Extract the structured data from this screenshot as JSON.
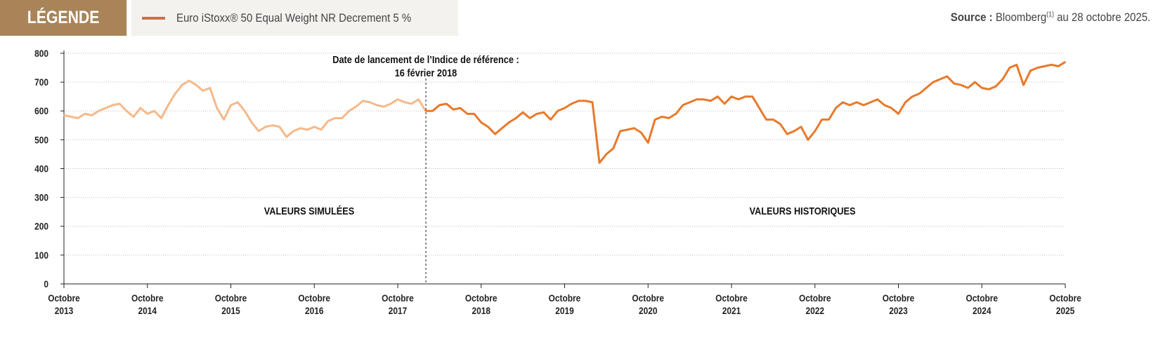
{
  "header": {
    "legend_tag": "LÉGENDE",
    "legend_label": "Euro iStoxx® 50 Equal Weight NR Decrement 5 %",
    "source_bold": "Source :",
    "source_text": "Bloomberg",
    "source_sup": "(1)",
    "source_rest": " au 28 octobre 2025."
  },
  "chart_data": {
    "type": "line",
    "ylim": [
      0,
      800
    ],
    "yticks": [
      "0",
      "100",
      "200",
      "300",
      "400",
      "500",
      "600",
      "700",
      "800"
    ],
    "xticks": [
      [
        "Octobre",
        "2013"
      ],
      [
        "Octobre",
        "2014"
      ],
      [
        "Octobre",
        "2015"
      ],
      [
        "Octobre",
        "2016"
      ],
      [
        "Octobre",
        "2017"
      ],
      [
        "Octobre",
        "2018"
      ],
      [
        "Octobre",
        "2019"
      ],
      [
        "Octobre",
        "2020"
      ],
      [
        "Octobre",
        "2021"
      ],
      [
        "Octobre",
        "2022"
      ],
      [
        "Octobre",
        "2023"
      ],
      [
        "Octobre",
        "2024"
      ],
      [
        "Octobre",
        "2025"
      ]
    ],
    "xrange": [
      "2013-10",
      "2025-10"
    ],
    "grid": true,
    "start": "2013-10",
    "launch_date": "2018-02",
    "annotations": {
      "launch_line1": "Date de lancement de l’Indice de référence :",
      "launch_line2": "16 février 2018",
      "simulated": "VALEURS SIMULÉES",
      "historical": "VALEURS HISTORIQUES"
    },
    "colors": {
      "simulated": "#f5b98a",
      "historical": "#e8792b"
    },
    "monthly_values": [
      585,
      580,
      575,
      590,
      585,
      600,
      610,
      620,
      625,
      600,
      580,
      610,
      590,
      600,
      575,
      620,
      660,
      690,
      705,
      690,
      670,
      680,
      610,
      570,
      620,
      630,
      600,
      560,
      530,
      545,
      550,
      545,
      510,
      530,
      540,
      535,
      545,
      535,
      565,
      575,
      575,
      600,
      615,
      635,
      630,
      620,
      615,
      625,
      640,
      630,
      625,
      640,
      600,
      600,
      620,
      625,
      605,
      610,
      590,
      590,
      560,
      545,
      520,
      540,
      560,
      575,
      595,
      575,
      590,
      595,
      570,
      600,
      610,
      625,
      635,
      635,
      630,
      420,
      450,
      470,
      530,
      535,
      540,
      525,
      490,
      570,
      580,
      575,
      590,
      620,
      630,
      640,
      640,
      635,
      650,
      625,
      650,
      640,
      650,
      650,
      610,
      570,
      570,
      555,
      520,
      530,
      545,
      500,
      530,
      570,
      570,
      610,
      630,
      620,
      630,
      620,
      630,
      640,
      620,
      610,
      590,
      630,
      650,
      660,
      680,
      700,
      710,
      720,
      695,
      690,
      680,
      700,
      680,
      675,
      685,
      710,
      750,
      760,
      690,
      740,
      750,
      755,
      760,
      755,
      770
    ]
  }
}
